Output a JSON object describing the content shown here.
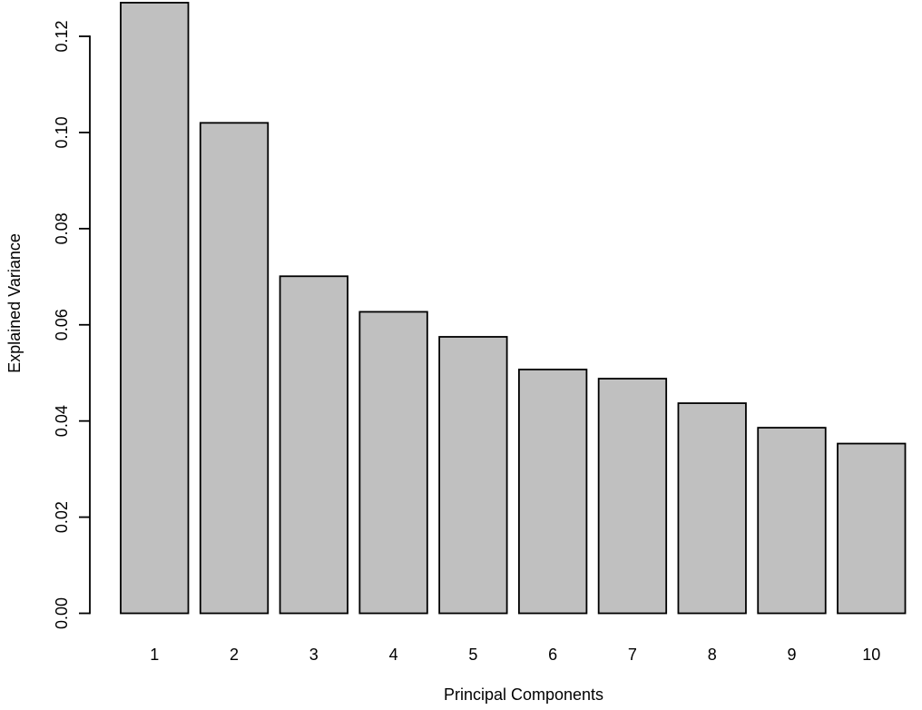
{
  "chart_data": {
    "type": "bar",
    "title": "",
    "xlabel": "Principal Components",
    "ylabel": "Explained Variance",
    "categories": [
      "1",
      "2",
      "3",
      "4",
      "5",
      "6",
      "7",
      "8",
      "9",
      "10"
    ],
    "values": [
      0.127,
      0.102,
      0.0701,
      0.0627,
      0.0575,
      0.0507,
      0.0488,
      0.0437,
      0.0386,
      0.0353
    ],
    "ylim": [
      0,
      0.127
    ],
    "yticks": [
      0.0,
      0.02,
      0.04,
      0.06,
      0.08,
      0.1,
      0.12
    ],
    "ytick_labels": [
      "0.00",
      "0.02",
      "0.04",
      "0.06",
      "0.08",
      "0.10",
      "0.12"
    ],
    "grid": false,
    "legend": null,
    "colors": {
      "bar_fill": "#c0c0c0",
      "bar_stroke": "#000000",
      "axis": "#000000",
      "text": "#000000",
      "background": "#ffffff"
    }
  }
}
